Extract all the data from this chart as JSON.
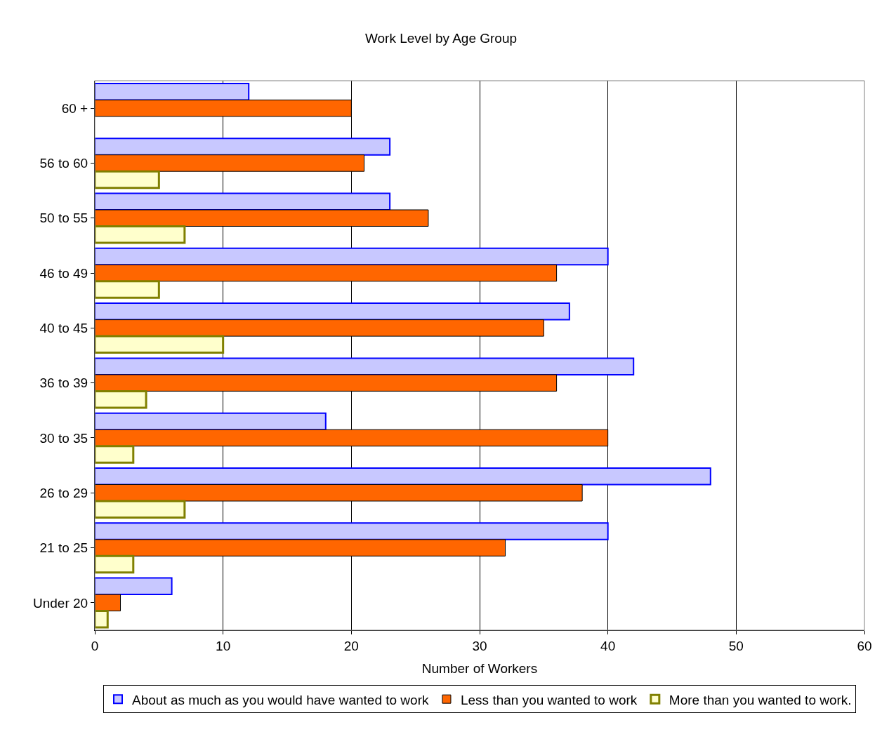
{
  "chart_data": {
    "type": "bar",
    "orientation": "horizontal",
    "title": "Work Level by Age Group",
    "xlabel": "Number of Workers",
    "categories": [
      "60 +",
      "56 to 60",
      "50 to 55",
      "46 to 49",
      "40 to 45",
      "36 to 39",
      "30 to 35",
      "26 to 29",
      "21 to 25",
      "Under 20"
    ],
    "series": [
      {
        "name": "About as much as you would have wanted to work",
        "color": "#c8c8ff",
        "values": [
          12,
          23,
          23,
          40,
          37,
          42,
          18,
          48,
          40,
          6
        ]
      },
      {
        "name": "Less than you wanted to work",
        "color": "#ff6600",
        "values": [
          20,
          21,
          26,
          36,
          35,
          36,
          40,
          38,
          32,
          2
        ]
      },
      {
        "name": "More than you wanted to work.",
        "color": "#ffffcc",
        "values": [
          null,
          5,
          7,
          5,
          10,
          4,
          3,
          7,
          3,
          1
        ]
      }
    ],
    "xlim": [
      0,
      60
    ],
    "xticks": [
      0,
      10,
      20,
      30,
      40,
      50,
      60
    ],
    "grid": "x",
    "legend": "bottom"
  }
}
